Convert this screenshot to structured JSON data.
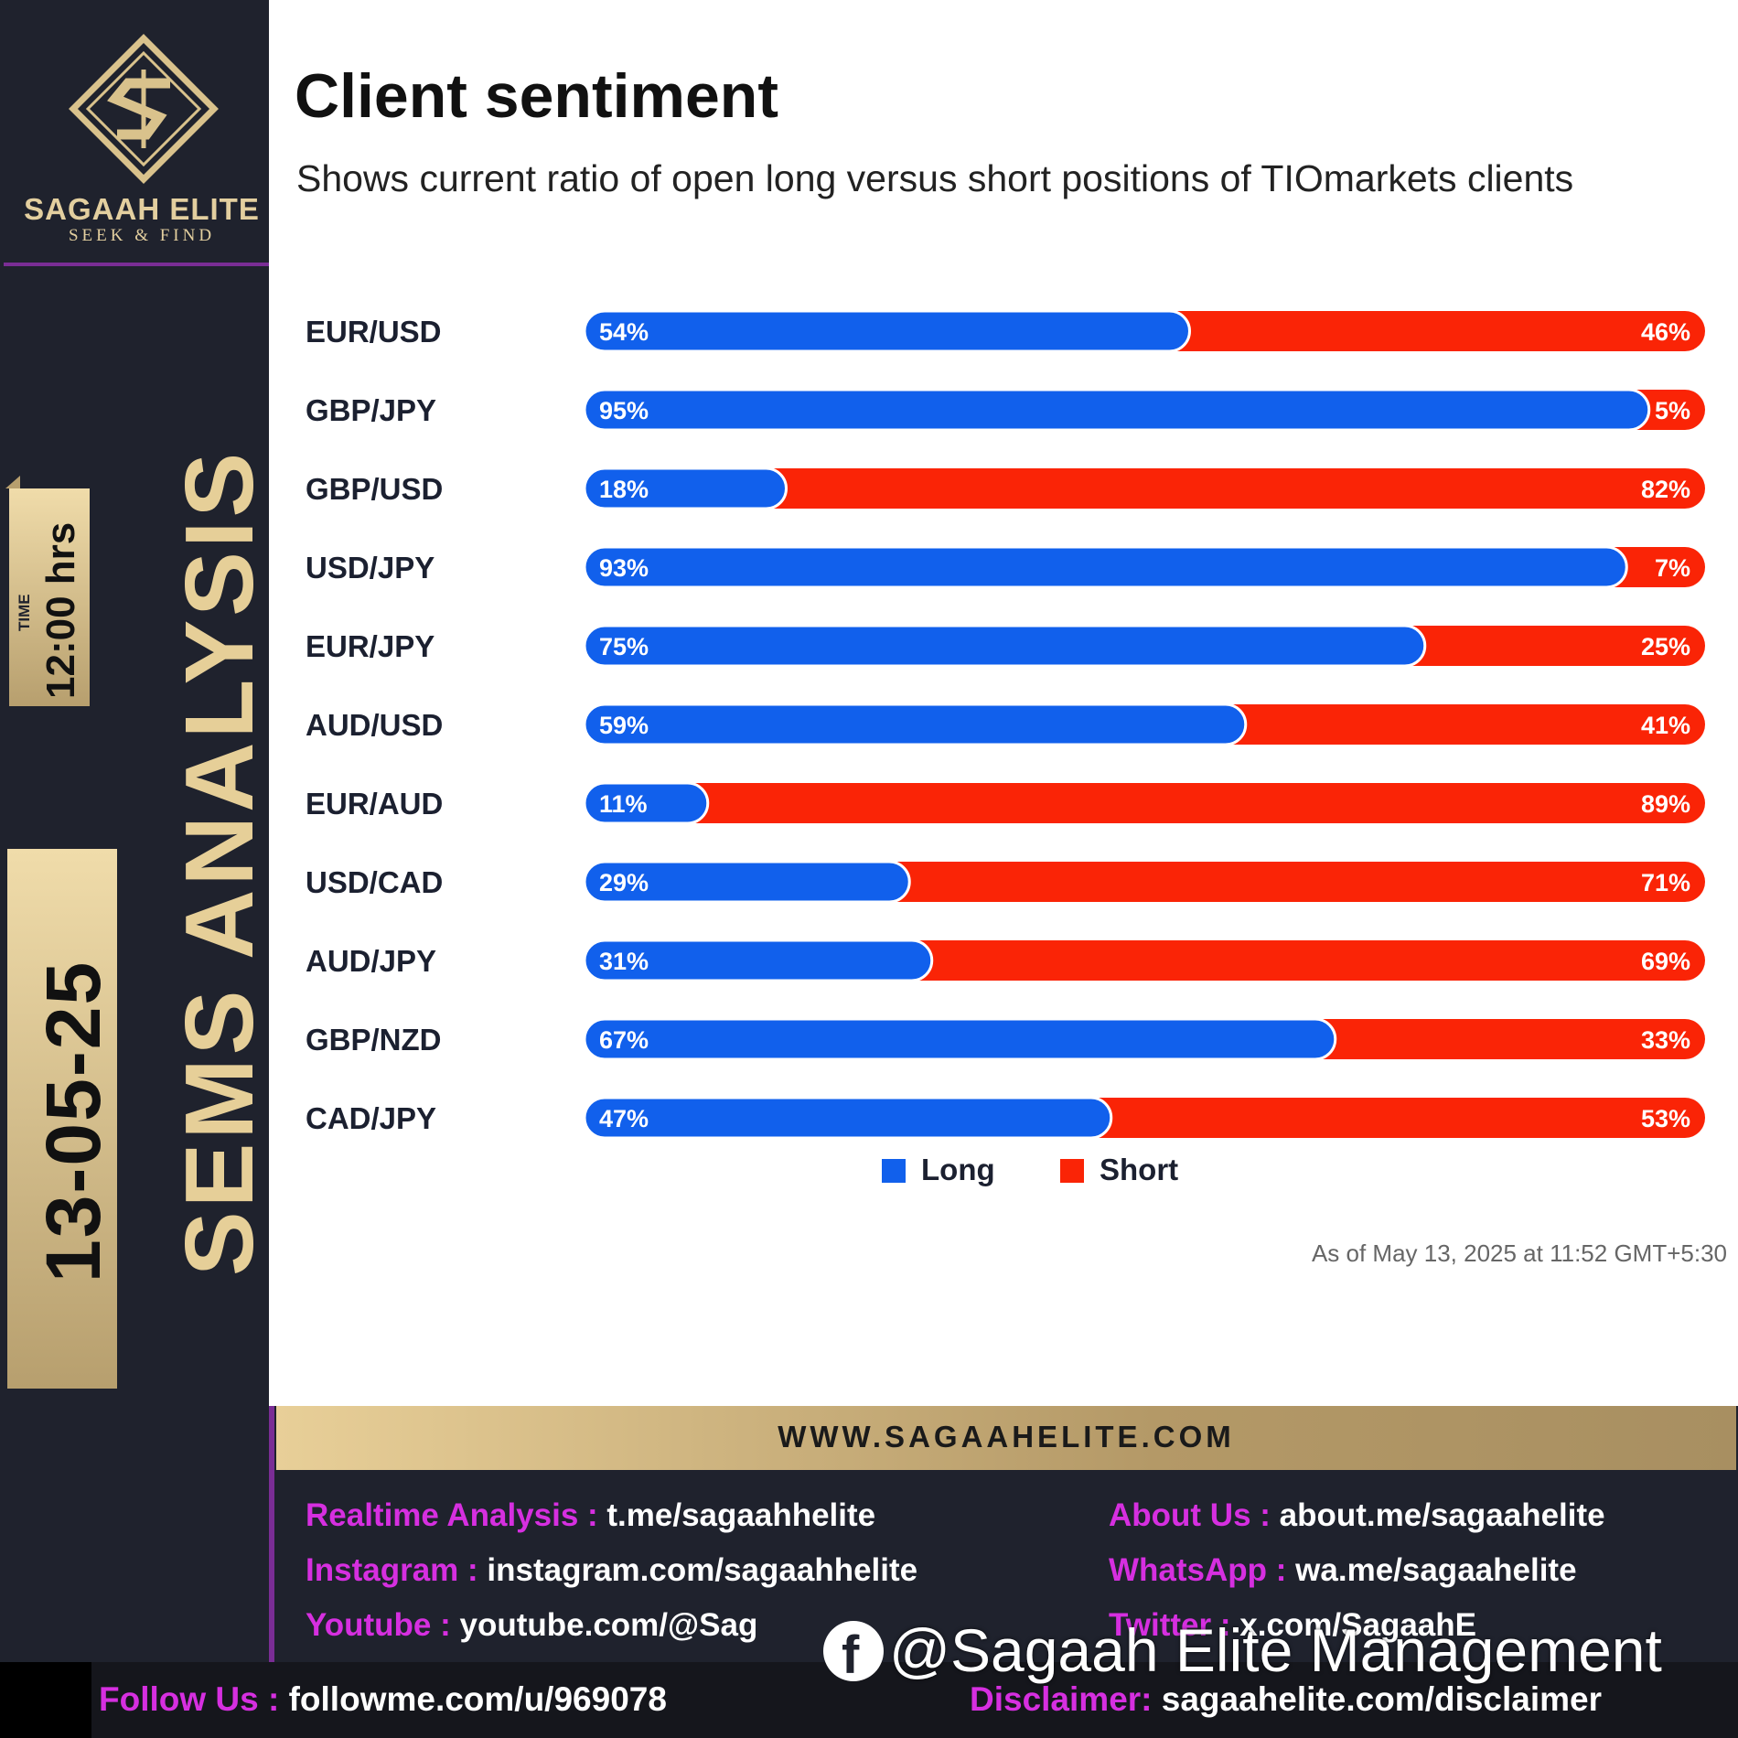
{
  "brand": {
    "name": "SAGAAH ELITE",
    "tagline": "SEEK & FIND",
    "gold": "#e3cf9f",
    "purple": "#7a2d95"
  },
  "sidebar": {
    "time_label": "TIME",
    "time_value": "12:00 hrs",
    "date_value": "13-05-25",
    "section_title": "SEMS ANALYSIS"
  },
  "header": {
    "title": "Client sentiment",
    "subtitle": "Shows current ratio of open long versus short positions of TIOmarkets clients"
  },
  "chart_data": {
    "type": "bar",
    "orientation": "horizontal",
    "stacked": true,
    "normalized": true,
    "categories": [
      "EUR/USD",
      "GBP/JPY",
      "GBP/USD",
      "USD/JPY",
      "EUR/JPY",
      "AUD/USD",
      "EUR/AUD",
      "USD/CAD",
      "AUD/JPY",
      "GBP/NZD",
      "CAD/JPY"
    ],
    "series": [
      {
        "name": "Long",
        "color": "#1160ec",
        "values": [
          54,
          95,
          18,
          93,
          75,
          59,
          11,
          29,
          31,
          67,
          47
        ]
      },
      {
        "name": "Short",
        "color": "#fa2406",
        "values": [
          46,
          5,
          82,
          7,
          25,
          41,
          89,
          71,
          69,
          33,
          53
        ]
      }
    ],
    "labels": {
      "long": [
        "54%",
        "95%",
        "18%",
        "93%",
        "75%",
        "59%",
        "11%",
        "29%",
        "31%",
        "67%",
        "47%"
      ],
      "short": [
        "46%",
        "5%",
        "82%",
        "7%",
        "25%",
        "41%",
        "89%",
        "71%",
        "69%",
        "33%",
        "53%"
      ]
    },
    "xlim": [
      0,
      100
    ],
    "legend_position": "bottom-center"
  },
  "legend": {
    "long": "Long",
    "short": "Short"
  },
  "as_of": "As of May 13, 2025 at 11:52 GMT+5:30",
  "footer": {
    "website": "WWW.SAGAAHELITE.COM",
    "links": [
      {
        "key": "Realtime Analysis :",
        "value": "t.me/sagaahhelite"
      },
      {
        "key": "About Us :",
        "value": "about.me/sagaahelite"
      },
      {
        "key": "Instagram :",
        "value": "instagram.com/sagaahhelite"
      },
      {
        "key": "WhatsApp :",
        "value": "wa.me/sagaahelite"
      },
      {
        "key": "Youtube :",
        "value": "youtube.com/@Sag"
      },
      {
        "key": "Twitter :",
        "value": "x.com/SagaahE"
      }
    ],
    "follow_key": "Follow Us :",
    "follow_value": "followme.com/u/969078",
    "disclaimer_key": "Disclaimer:",
    "disclaimer_value": "sagaahelite.com/disclaimer"
  },
  "watermark": {
    "icon": "facebook-icon",
    "text": "@Sagaah Elite Management"
  }
}
